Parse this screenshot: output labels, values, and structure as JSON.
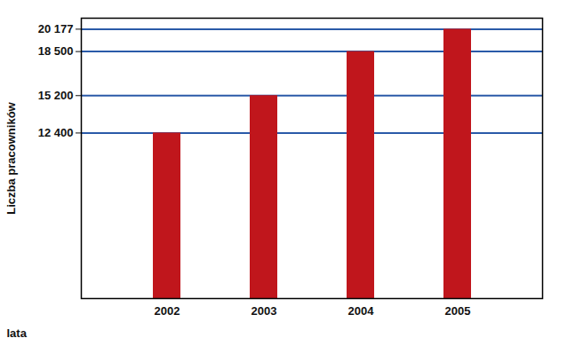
{
  "chart_data": {
    "type": "bar",
    "categories": [
      "2002",
      "2003",
      "2004",
      "2005"
    ],
    "values": [
      12400,
      15200,
      18500,
      20177
    ],
    "color": "#c0161c",
    "x_label": "lata",
    "y_label": "Liczba pracowników",
    "ylim": [
      0,
      21000
    ],
    "yticks": [
      {
        "value": 12400,
        "label": "12 400"
      },
      {
        "value": 15200,
        "label": "15 200"
      },
      {
        "value": 18500,
        "label": "18 500"
      },
      {
        "value": 20177,
        "label": "20 177"
      }
    ],
    "grid": true
  }
}
